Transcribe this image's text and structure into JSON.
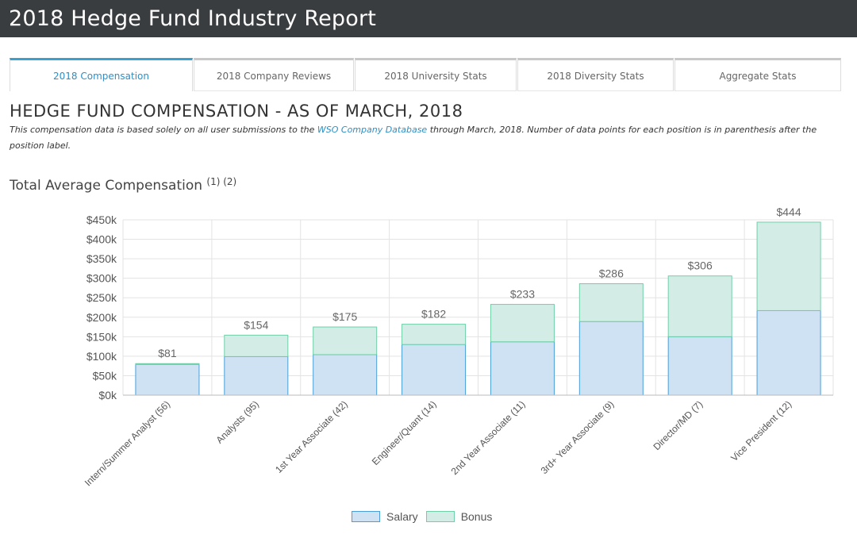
{
  "app": {
    "title": "2018 Hedge Fund Industry Report"
  },
  "tabs": [
    {
      "label": "2018 Compensation",
      "active": true
    },
    {
      "label": "2018 Company Reviews",
      "active": false
    },
    {
      "label": "2018 University Stats",
      "active": false
    },
    {
      "label": "2018 Diversity Stats",
      "active": false
    },
    {
      "label": "Aggregate Stats",
      "active": false
    }
  ],
  "section": {
    "heading": "HEDGE FUND COMPENSATION - AS OF MARCH, 2018",
    "desc_before": "This compensation data is based solely on all user submissions to the ",
    "desc_link": "WSO Company Database",
    "desc_after": " through March, 2018. Number of data points for each position is in parenthesis after the position label.",
    "subheading": "Total Average Compensation",
    "subheading_notes": "(1) (2)"
  },
  "colors": {
    "salary_fill": "#cfe2f3",
    "salary_stroke": "#4a9fd8",
    "bonus_fill": "#d3ede6",
    "bonus_stroke": "#6fcfa8"
  },
  "chart_data": {
    "type": "bar",
    "stacked": true,
    "categories": [
      "Intern/Summer Analyst (56)",
      "Analysts (95)",
      "1st Year Associate (42)",
      "Engineer/Quant (14)",
      "2nd Year Associate (11)",
      "3rd+ Year Associate (9)",
      "Director/MD (7)",
      "Vice President (12)"
    ],
    "series": [
      {
        "name": "Salary",
        "values": [
          79,
          99,
          104,
          130,
          137,
          189,
          150,
          217
        ]
      },
      {
        "name": "Bonus",
        "values": [
          2,
          55,
          71,
          52,
          96,
          97,
          156,
          227
        ]
      }
    ],
    "totals": [
      "$81",
      "$154",
      "$175",
      "$182",
      "$233",
      "$286",
      "$306",
      "$444"
    ],
    "yticks": [
      "$0k",
      "$50k",
      "$100k",
      "$150k",
      "$200k",
      "$250k",
      "$300k",
      "$350k",
      "$400k",
      "$450k"
    ],
    "ylim": [
      0,
      450
    ],
    "ystep": 50,
    "grid": true,
    "legend": "bottom-center"
  }
}
